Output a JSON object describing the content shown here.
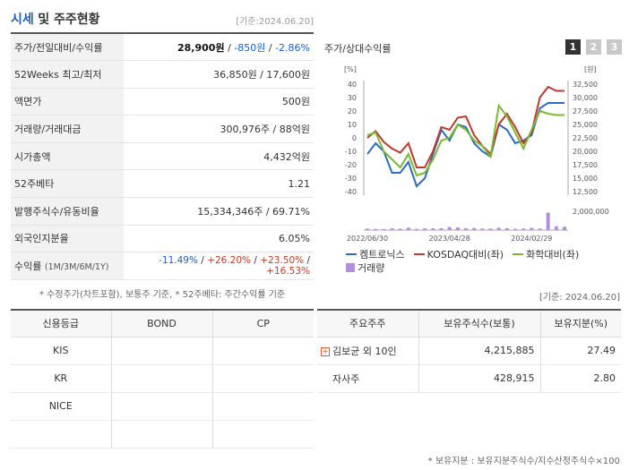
{
  "header": {
    "title_a": "시세",
    "title_b": "및 주주현황",
    "date": "[기준:2024.06.20]"
  },
  "summary": {
    "price_label": "주가/전일대비/수익률",
    "price": "28,900원",
    "change": "-850원",
    "change_sep": " / ",
    "rate": "-2.86%",
    "week52_label": "52Weeks 최고/최저",
    "week52": "36,850원 / 17,600원",
    "par_label": "액면가",
    "par": "500원",
    "volume_label": "거래량/거래대금",
    "volume": "300,976주 / 88억원",
    "mcap_label": "시가총액",
    "mcap": "4,432억원",
    "beta_label": "52주베타",
    "beta": "1.21",
    "shares_label": "발행주식수/유동비율",
    "shares": "15,334,346주 / 69.71%",
    "foreign_label": "외국인지분율",
    "foreign": "6.05%",
    "returns_label": "수익률",
    "returns_periods": "(1M/3M/6M/1Y)",
    "r1": "-11.49%",
    "r2": "+26.20%",
    "r3": "+23.50%",
    "r4": "+16.53%",
    "sep": "/"
  },
  "note1": "* 수정주가(차트포함), 보통주 기준, * 52주베타: 주간수익률 기준",
  "chart": {
    "title": "주가/상대수익률",
    "tabs": [
      "1",
      "2",
      "3"
    ],
    "left_unit": "[%]",
    "right_unit": "[원]",
    "left_ticks": [
      "40",
      "30",
      "20",
      "10",
      "0",
      "-10",
      "-20",
      "-30",
      "-40"
    ],
    "right_ticks": [
      "32,500",
      "30,000",
      "27,500",
      "25,000",
      "22,500",
      "20,000",
      "17,500",
      "15,000",
      "12,500"
    ],
    "vol_tick": "2,000,000",
    "x_ticks": [
      "2022/06/30",
      "2023/04/28",
      "2024/02/29"
    ]
  },
  "chart_data": {
    "type": "line",
    "x": [
      "2022/06/30",
      "2022/07",
      "2022/08",
      "2022/09",
      "2022/10",
      "2022/11",
      "2022/12",
      "2023/01",
      "2023/02",
      "2023/03",
      "2023/04/28",
      "2023/05",
      "2023/06",
      "2023/07",
      "2023/08",
      "2023/09",
      "2023/10",
      "2023/11",
      "2023/12",
      "2024/01",
      "2024/02/29",
      "2024/03",
      "2024/04",
      "2024/05",
      "2024/06"
    ],
    "ylim_left": [
      -40,
      40
    ],
    "ylim_right": [
      12500,
      32500
    ],
    "series": [
      {
        "name": "켐트로닉스",
        "color": "#2b6cc4",
        "values": [
          -12,
          -4,
          -10,
          -26,
          -26,
          -18,
          -36,
          -30,
          -12,
          6,
          -2,
          10,
          8,
          -4,
          -10,
          -14,
          10,
          6,
          -4,
          -2,
          2,
          22,
          26,
          26,
          26
        ]
      },
      {
        "name": "KOSDAQ대비(좌)",
        "color": "#c0392b",
        "values": [
          0,
          5,
          -3,
          -8,
          -11,
          -4,
          -22,
          -22,
          -10,
          8,
          6,
          15,
          16,
          2,
          -6,
          -12,
          10,
          18,
          8,
          -4,
          4,
          30,
          38,
          35,
          35
        ]
      },
      {
        "name": "화학대비(좌)",
        "color": "#7cb82f",
        "values": [
          2,
          4,
          -10,
          -16,
          -22,
          -12,
          -28,
          -26,
          -16,
          -2,
          0,
          10,
          6,
          -2,
          -6,
          -14,
          24,
          16,
          4,
          -8,
          6,
          20,
          18,
          17,
          17
        ]
      }
    ],
    "volume": {
      "name": "거래량",
      "color": "#b18ee0",
      "values": [
        160000,
        120000,
        110000,
        180000,
        140000,
        260000,
        120000,
        180000,
        180000,
        190000,
        320000,
        280000,
        200000,
        220000,
        160000,
        150000,
        260000,
        200000,
        140000,
        160000,
        240000,
        160000,
        1850000,
        400000,
        350000
      ],
      "max": 2000000
    }
  },
  "legend": {
    "s1": "켐트로닉스",
    "s2": "KOSDAQ대비(좌)",
    "s3": "화학대비(좌)",
    "vol": "거래량"
  },
  "date2": "[기준: 2024.06.20]",
  "credit": {
    "headers": [
      "신용등급",
      "BOND",
      "CP"
    ],
    "rows": [
      "KIS",
      "KR",
      "NICE",
      ""
    ]
  },
  "holders": {
    "headers": [
      "주요주주",
      "보유주식수(보통)",
      "보유지분(%)"
    ],
    "rows": [
      {
        "name": "김보균 외 10인",
        "shares": "4,215,885",
        "pct": "27.49"
      },
      {
        "name": "자사주",
        "shares": "428,915",
        "pct": "2.80"
      }
    ]
  },
  "note2": "* 보유지분 : 보유지분주식수/지수산정주식수×100"
}
